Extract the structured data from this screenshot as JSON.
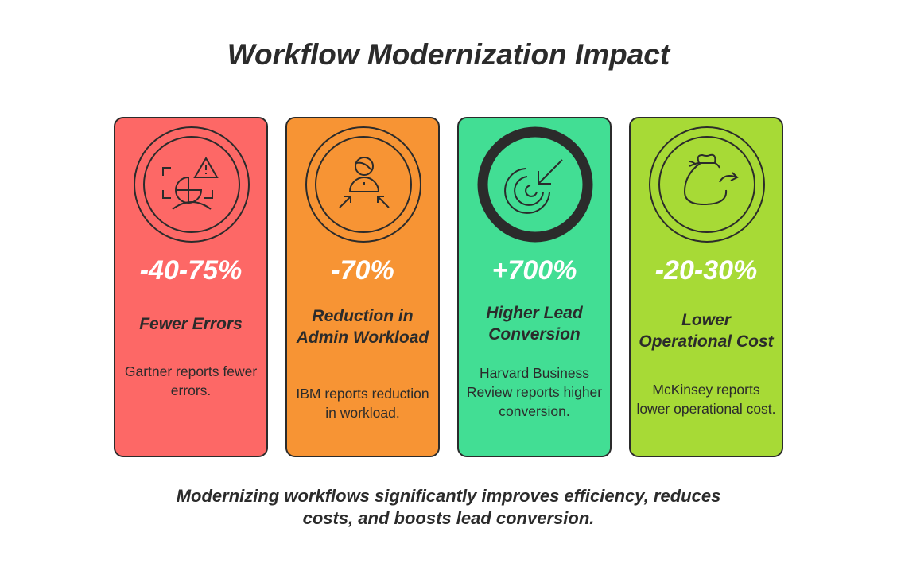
{
  "title": "Workflow Modernization Impact",
  "cards": [
    {
      "stat": "-40-75%",
      "label": "Fewer Errors",
      "description": "Gartner reports fewer errors.",
      "icon": "error-warning-icon",
      "color": "#fd6866"
    },
    {
      "stat": "-70%",
      "label": "Reduction in Admin Workload",
      "description": "IBM reports reduction in workload.",
      "icon": "admin-person-icon",
      "color": "#f79434"
    },
    {
      "stat": "+700%",
      "label": "Higher Lead Conversion",
      "description": "Harvard Business Review reports higher conversion.",
      "icon": "target-icon",
      "color": "#42de94"
    },
    {
      "stat": "-20-30%",
      "label": "Lower Operational Cost",
      "description": "McKinsey reports lower operational cost.",
      "icon": "money-bag-icon",
      "color": "#a7da36"
    }
  ],
  "footer": "Modernizing workflows significantly improves efficiency, reduces costs, and boosts lead conversion."
}
